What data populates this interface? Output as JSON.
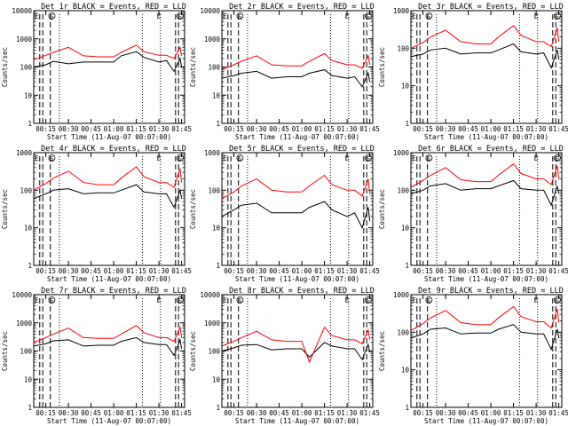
{
  "common": {
    "title_suffix": "BLACK = Events, RED = LLD",
    "xlabel": "Start Time (11-Aug-07 00:07:00)",
    "ylabel": "Counts/sec",
    "xticks": [
      "00:15",
      "00:30",
      "00:45",
      "01:00",
      "01:15",
      "01:30",
      "01:45"
    ],
    "markers": {
      "E": "E",
      "S": "S"
    },
    "colors": {
      "events": "#000000",
      "lld": "#ff0000",
      "axes": "#000000"
    }
  },
  "chart_data": [
    {
      "type": "line",
      "title": "Det 1r BLACK = Events, RED = LLD",
      "xlabel": "Start Time (11-Aug-07 00:07:00)",
      "ylabel": "Counts/sec",
      "y_scale": "log",
      "ylim": [
        1,
        10000
      ],
      "xlim": [
        "00:07",
        "01:47"
      ],
      "series": [
        {
          "name": "Events",
          "color": "#000000",
          "x": [
            "00:07",
            "00:15",
            "00:20",
            "00:30",
            "00:40",
            "00:50",
            "01:00",
            "01:05",
            "01:15",
            "01:20",
            "01:30",
            "01:35",
            "01:40",
            "01:44",
            "01:45"
          ],
          "values": [
            100,
            120,
            160,
            130,
            150,
            150,
            150,
            250,
            350,
            220,
            150,
            170,
            70,
            200,
            100
          ]
        },
        {
          "name": "LLD",
          "color": "#ff0000",
          "x": [
            "00:07",
            "00:15",
            "00:20",
            "00:30",
            "00:40",
            "00:50",
            "01:00",
            "01:05",
            "01:15",
            "01:20",
            "01:30",
            "01:35",
            "01:40",
            "01:44",
            "01:45"
          ],
          "values": [
            180,
            260,
            330,
            500,
            250,
            230,
            230,
            330,
            600,
            350,
            260,
            260,
            200,
            500,
            250
          ]
        }
      ]
    },
    {
      "type": "line",
      "title": "Det 2r BLACK = Events, RED = LLD",
      "xlabel": "Start Time (11-Aug-07 00:07:00)",
      "ylabel": "Counts/sec",
      "y_scale": "log",
      "ylim": [
        1,
        10000
      ],
      "xlim": [
        "00:07",
        "01:47"
      ],
      "series": [
        {
          "name": "Events",
          "color": "#000000",
          "x": [
            "00:07",
            "00:15",
            "00:20",
            "00:30",
            "00:40",
            "00:50",
            "01:00",
            "01:05",
            "01:15",
            "01:20",
            "01:30",
            "01:35",
            "01:40",
            "01:44",
            "01:45"
          ],
          "values": [
            40,
            50,
            60,
            70,
            40,
            45,
            45,
            60,
            80,
            50,
            40,
            45,
            20,
            60,
            30
          ]
        },
        {
          "name": "LLD",
          "color": "#ff0000",
          "x": [
            "00:07",
            "00:15",
            "00:20",
            "00:30",
            "00:40",
            "00:50",
            "01:00",
            "01:05",
            "01:15",
            "01:20",
            "01:30",
            "01:35",
            "01:40",
            "01:44",
            "01:45"
          ],
          "values": [
            80,
            120,
            160,
            250,
            120,
            110,
            110,
            160,
            300,
            170,
            120,
            120,
            90,
            250,
            120
          ]
        }
      ]
    },
    {
      "type": "line",
      "title": "Det 3r BLACK = Events, RED = LLD",
      "xlabel": "Start Time (11-Aug-07 00:07:00)",
      "ylabel": "Counts/sec",
      "y_scale": "log",
      "ylim": [
        1,
        1000
      ],
      "xlim": [
        "00:07",
        "01:47"
      ],
      "series": [
        {
          "name": "Events",
          "color": "#000000",
          "x": [
            "00:07",
            "00:15",
            "00:20",
            "00:30",
            "00:40",
            "00:50",
            "01:00",
            "01:05",
            "01:15",
            "01:20",
            "01:30",
            "01:35",
            "01:40",
            "01:44",
            "01:45"
          ],
          "values": [
            60,
            70,
            90,
            100,
            70,
            75,
            75,
            90,
            130,
            80,
            70,
            75,
            30,
            90,
            50
          ]
        },
        {
          "name": "LLD",
          "color": "#ff0000",
          "x": [
            "00:07",
            "00:15",
            "00:20",
            "00:30",
            "00:40",
            "00:50",
            "01:00",
            "01:05",
            "01:15",
            "01:20",
            "01:30",
            "01:35",
            "01:40",
            "01:44",
            "01:45"
          ],
          "values": [
            100,
            140,
            200,
            300,
            150,
            130,
            130,
            200,
            400,
            220,
            150,
            150,
            110,
            350,
            150
          ]
        }
      ]
    },
    {
      "type": "line",
      "title": "Det 4r BLACK = Events, RED = LLD",
      "xlabel": "Start Time (11-Aug-07 00:07:00)",
      "ylabel": "Counts/sec",
      "y_scale": "log",
      "ylim": [
        1,
        1000
      ],
      "xlim": [
        "00:07",
        "01:47"
      ],
      "series": [
        {
          "name": "Events",
          "color": "#000000",
          "x": [
            "00:07",
            "00:15",
            "00:20",
            "00:30",
            "00:40",
            "00:50",
            "01:00",
            "01:05",
            "01:15",
            "01:20",
            "01:30",
            "01:35",
            "01:40",
            "01:44",
            "01:45"
          ],
          "values": [
            60,
            80,
            100,
            110,
            80,
            85,
            85,
            100,
            140,
            90,
            80,
            80,
            35,
            100,
            60
          ]
        },
        {
          "name": "LLD",
          "color": "#ff0000",
          "x": [
            "00:07",
            "00:15",
            "00:20",
            "00:30",
            "00:40",
            "00:50",
            "01:00",
            "01:05",
            "01:15",
            "01:20",
            "01:30",
            "01:35",
            "01:40",
            "01:44",
            "01:45"
          ],
          "values": [
            100,
            150,
            210,
            320,
            160,
            140,
            140,
            210,
            420,
            230,
            160,
            160,
            120,
            380,
            160
          ]
        }
      ]
    },
    {
      "type": "line",
      "title": "Det 5r BLACK = Events, RED = LLD",
      "xlabel": "Start Time (11-Aug-07 00:07:00)",
      "ylabel": "Counts/sec",
      "y_scale": "log",
      "ylim": [
        1,
        1000
      ],
      "xlim": [
        "00:07",
        "01:47"
      ],
      "series": [
        {
          "name": "Events",
          "color": "#000000",
          "x": [
            "00:07",
            "00:15",
            "00:20",
            "00:30",
            "00:40",
            "00:50",
            "01:00",
            "01:05",
            "01:15",
            "01:20",
            "01:30",
            "01:35",
            "01:40",
            "01:44",
            "01:45"
          ],
          "values": [
            20,
            30,
            40,
            45,
            25,
            25,
            25,
            35,
            50,
            30,
            20,
            25,
            10,
            35,
            15
          ]
        },
        {
          "name": "LLD",
          "color": "#ff0000",
          "x": [
            "00:07",
            "00:15",
            "00:20",
            "00:30",
            "00:40",
            "00:50",
            "01:00",
            "01:05",
            "01:15",
            "01:20",
            "01:30",
            "01:35",
            "01:40",
            "01:44",
            "01:45"
          ],
          "values": [
            60,
            90,
            130,
            200,
            100,
            90,
            90,
            130,
            250,
            140,
            100,
            100,
            70,
            200,
            80
          ]
        }
      ]
    },
    {
      "type": "line",
      "title": "Det 6r BLACK = Events, RED = LLD",
      "xlabel": "Start Time (11-Aug-07 00:07:00)",
      "ylabel": "Counts/sec",
      "y_scale": "log",
      "ylim": [
        1,
        1000
      ],
      "xlim": [
        "00:07",
        "01:47"
      ],
      "series": [
        {
          "name": "Events",
          "color": "#000000",
          "x": [
            "00:07",
            "00:15",
            "00:20",
            "00:30",
            "00:40",
            "00:50",
            "01:00",
            "01:05",
            "01:15",
            "01:20",
            "01:30",
            "01:35",
            "01:40",
            "01:44",
            "01:45"
          ],
          "values": [
            80,
            100,
            130,
            150,
            100,
            110,
            110,
            130,
            180,
            110,
            100,
            100,
            40,
            130,
            80
          ]
        },
        {
          "name": "LLD",
          "color": "#ff0000",
          "x": [
            "00:07",
            "00:15",
            "00:20",
            "00:30",
            "00:40",
            "00:50",
            "01:00",
            "01:05",
            "01:15",
            "01:20",
            "01:30",
            "01:35",
            "01:40",
            "01:44",
            "01:45"
          ],
          "values": [
            120,
            180,
            250,
            400,
            190,
            170,
            170,
            250,
            500,
            280,
            200,
            200,
            140,
            450,
            200
          ]
        }
      ]
    },
    {
      "type": "line",
      "title": "Det 7r BLACK = Events, RED = LLD",
      "xlabel": "Start Time (11-Aug-07 00:07:00)",
      "ylabel": "Counts/sec",
      "y_scale": "log",
      "ylim": [
        1,
        10000
      ],
      "xlim": [
        "00:07",
        "01:47"
      ],
      "series": [
        {
          "name": "Events",
          "color": "#000000",
          "x": [
            "00:07",
            "00:15",
            "00:20",
            "00:30",
            "00:40",
            "00:50",
            "01:00",
            "01:05",
            "01:15",
            "01:20",
            "01:30",
            "01:35",
            "01:40",
            "01:44",
            "01:45"
          ],
          "values": [
            150,
            180,
            230,
            250,
            150,
            160,
            160,
            220,
            300,
            200,
            170,
            170,
            70,
            250,
            120
          ]
        },
        {
          "name": "LLD",
          "color": "#ff0000",
          "x": [
            "00:07",
            "00:15",
            "00:20",
            "00:30",
            "00:40",
            "00:50",
            "01:00",
            "01:05",
            "01:15",
            "01:20",
            "01:30",
            "01:35",
            "01:40",
            "01:44",
            "01:45"
          ],
          "values": [
            200,
            300,
            400,
            650,
            300,
            280,
            280,
            400,
            800,
            450,
            300,
            300,
            220,
            700,
            300
          ]
        }
      ]
    },
    {
      "type": "line",
      "title": "Det 8r BLACK = Events, RED = LLD",
      "xlabel": "Start Time (11-Aug-07 00:07:00)",
      "ylabel": "Counts/sec",
      "y_scale": "log",
      "ylim": [
        1,
        10000
      ],
      "xlim": [
        "00:07",
        "01:47"
      ],
      "series": [
        {
          "name": "Events",
          "color": "#000000",
          "x": [
            "00:07",
            "00:15",
            "00:20",
            "00:30",
            "00:40",
            "00:50",
            "01:00",
            "01:05",
            "01:15",
            "01:20",
            "01:30",
            "01:35",
            "01:40",
            "01:44",
            "01:45"
          ],
          "values": [
            100,
            130,
            160,
            170,
            110,
            120,
            120,
            60,
            200,
            150,
            120,
            120,
            50,
            170,
            90
          ]
        },
        {
          "name": "LLD",
          "color": "#ff0000",
          "x": [
            "00:07",
            "00:15",
            "00:20",
            "00:30",
            "00:40",
            "00:50",
            "01:00",
            "01:05",
            "01:15",
            "01:20",
            "01:30",
            "01:35",
            "01:40",
            "01:44",
            "01:45"
          ],
          "values": [
            150,
            220,
            300,
            500,
            250,
            220,
            220,
            40,
            700,
            350,
            250,
            250,
            180,
            550,
            250
          ]
        }
      ]
    },
    {
      "type": "line",
      "title": "Det 9r BLACK = Events, RED = LLD",
      "xlabel": "Start Time (11-Aug-07 00:07:00)",
      "ylabel": "Counts/sec",
      "y_scale": "log",
      "ylim": [
        1,
        1000
      ],
      "xlim": [
        "00:07",
        "01:47"
      ],
      "series": [
        {
          "name": "Events",
          "color": "#000000",
          "x": [
            "00:07",
            "00:15",
            "00:20",
            "00:30",
            "00:40",
            "00:50",
            "01:00",
            "01:05",
            "01:15",
            "01:20",
            "01:30",
            "01:35",
            "01:40",
            "01:44",
            "01:45"
          ],
          "values": [
            70,
            90,
            120,
            130,
            90,
            95,
            95,
            120,
            160,
            100,
            90,
            90,
            35,
            120,
            70
          ]
        },
        {
          "name": "LLD",
          "color": "#ff0000",
          "x": [
            "00:07",
            "00:15",
            "00:20",
            "00:30",
            "00:40",
            "00:50",
            "01:00",
            "01:05",
            "01:15",
            "01:20",
            "01:30",
            "01:35",
            "01:40",
            "01:44",
            "01:45"
          ],
          "values": [
            110,
            170,
            240,
            380,
            180,
            160,
            160,
            240,
            480,
            260,
            190,
            190,
            130,
            420,
            180
          ]
        }
      ]
    }
  ]
}
